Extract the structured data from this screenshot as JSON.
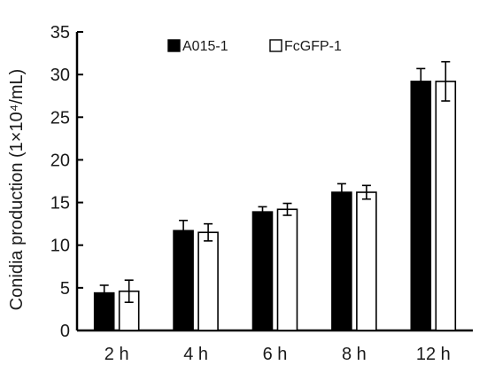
{
  "chart_data": {
    "type": "bar",
    "title": "",
    "xlabel": "",
    "ylabel": "Conidia production (1×10⁴/mL)",
    "ylim": [
      0,
      35
    ],
    "yticks": [
      0,
      5,
      10,
      15,
      20,
      25,
      30,
      35
    ],
    "grid": false,
    "legend_position": "top-center",
    "categories": [
      "2 h",
      "4 h",
      "6 h",
      "8 h",
      "12 h"
    ],
    "series": [
      {
        "name": "A015-1",
        "fill": "#000000",
        "values": [
          4.4,
          11.7,
          13.9,
          16.2,
          29.2
        ],
        "errors": [
          0.9,
          1.2,
          0.6,
          1.0,
          1.5
        ]
      },
      {
        "name": "FcGFP-1",
        "fill": "#ffffff",
        "values": [
          4.6,
          11.5,
          14.2,
          16.2,
          29.2
        ],
        "errors": [
          1.3,
          1.0,
          0.7,
          0.8,
          2.3
        ]
      }
    ]
  }
}
